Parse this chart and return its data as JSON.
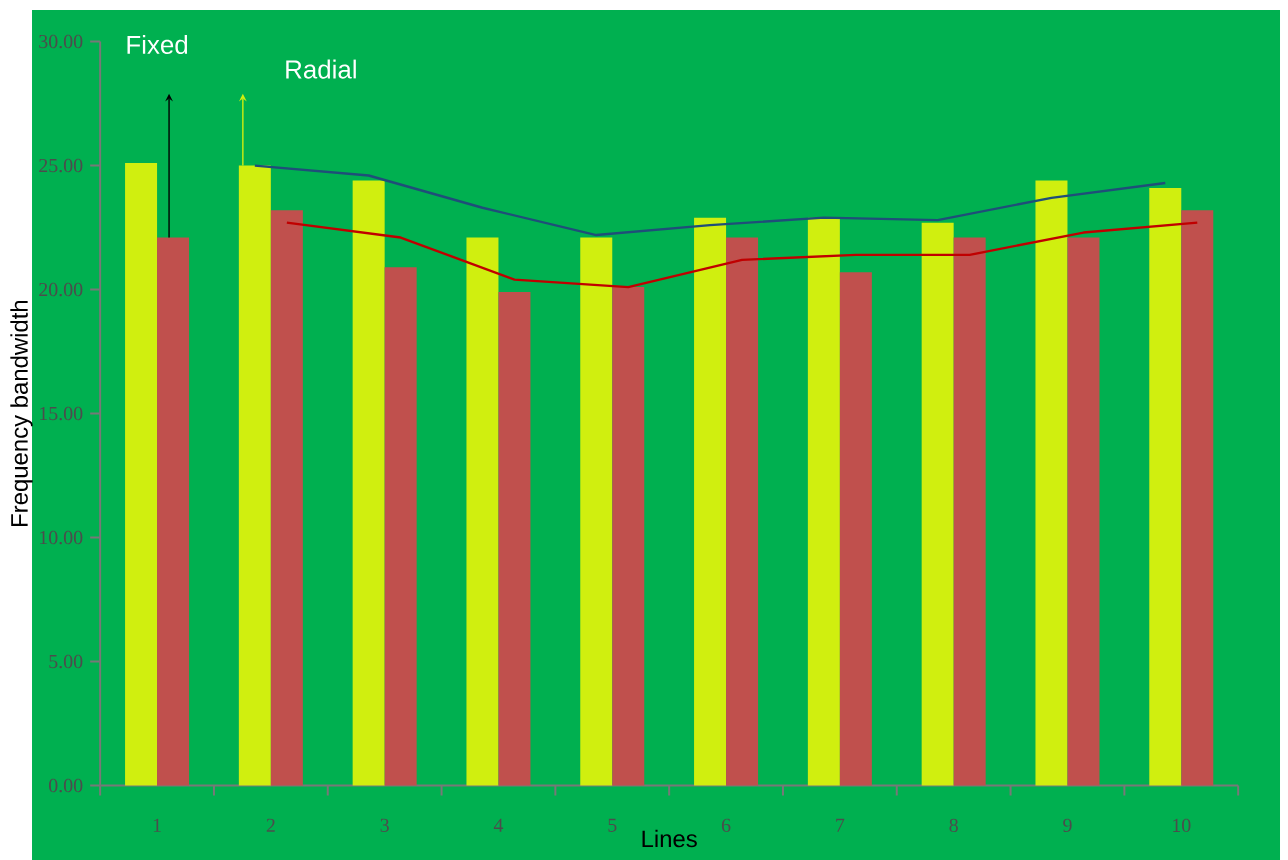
{
  "chart_data": {
    "type": "bar",
    "xlabel": "Lines",
    "ylabel": "Frequency bandwidth",
    "categories": [
      "1",
      "2",
      "3",
      "4",
      "5",
      "6",
      "7",
      "8",
      "9",
      "10"
    ],
    "series": [
      {
        "color": "#d0ef0f",
        "values": [
          25.1,
          25.0,
          24.4,
          22.1,
          22.1,
          22.9,
          22.9,
          22.7,
          24.4,
          24.1
        ]
      },
      {
        "color": "#c0504d",
        "values": [
          22.1,
          23.2,
          20.9,
          19.9,
          20.1,
          22.1,
          20.7,
          22.1,
          22.1,
          23.2
        ]
      },
      {
        "type": "line",
        "color": "#1f4e79",
        "values": [
          null,
          25.0,
          24.6,
          23.3,
          22.2,
          22.6,
          22.9,
          22.8,
          23.7,
          24.3
        ]
      },
      {
        "type": "line",
        "color": "#c00000",
        "values": [
          null,
          22.7,
          22.1,
          20.4,
          20.1,
          21.2,
          21.4,
          21.4,
          22.3,
          22.7
        ]
      }
    ],
    "ylim": [
      0,
      30
    ],
    "yticks": [
      {
        "value": 0,
        "label": "0.00"
      },
      {
        "value": 5,
        "label": "5.00"
      },
      {
        "value": 10,
        "label": "10.00"
      },
      {
        "value": 15,
        "label": "15.00"
      },
      {
        "value": 20,
        "label": "20.00"
      },
      {
        "value": 25,
        "label": "25.00"
      },
      {
        "value": 30,
        "label": "30.00"
      }
    ],
    "annotations": [
      "Fixed",
      "Radial"
    ],
    "grid": false,
    "marker": "none",
    "line_style": "solid"
  }
}
